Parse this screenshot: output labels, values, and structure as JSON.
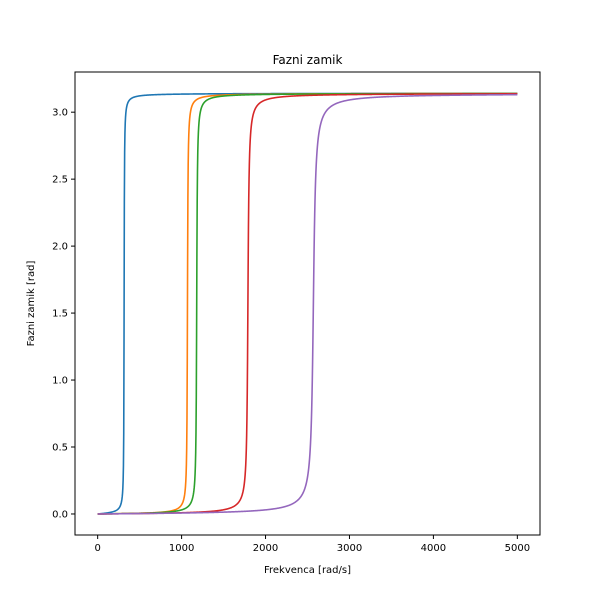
{
  "chart_data": {
    "type": "line",
    "title": "Fazni zamik",
    "xlabel": "Frekvenca [rad/s]",
    "ylabel": "Fazni zamik [rad]",
    "xlim": [
      -270,
      5270
    ],
    "ylim": [
      -0.157,
      3.3
    ],
    "xticks": [
      0,
      1000,
      2000,
      3000,
      4000,
      5000
    ],
    "yticks": [
      0.0,
      0.5,
      1.0,
      1.5,
      2.0,
      2.5,
      3.0
    ],
    "xtick_labels": [
      "0",
      "1000",
      "2000",
      "3000",
      "4000",
      "5000"
    ],
    "ytick_labels": [
      "0.0",
      "0.5",
      "1.0",
      "1.5",
      "2.0",
      "2.5",
      "3.0"
    ],
    "grid": false,
    "x_range": [
      0,
      5000
    ],
    "max_phase": 3.14159,
    "series": [
      {
        "resonance": 315,
        "width": 6,
        "color": "#1f77b4"
      },
      {
        "resonance": 1070,
        "width": 10,
        "color": "#ff7f0e"
      },
      {
        "resonance": 1180,
        "width": 12,
        "color": "#2ca02c"
      },
      {
        "resonance": 1790,
        "width": 20,
        "color": "#d62728"
      },
      {
        "resonance": 2570,
        "width": 40,
        "color": "#9467bd"
      }
    ]
  }
}
